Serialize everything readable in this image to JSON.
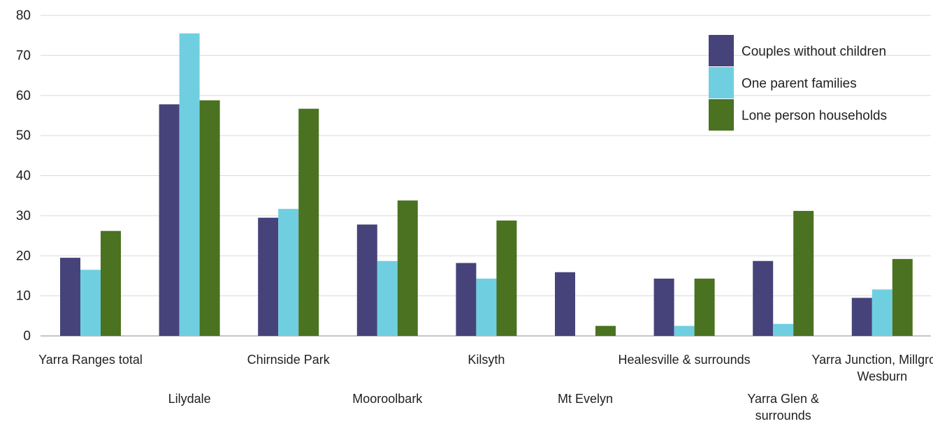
{
  "chart_data": {
    "type": "bar",
    "title": "",
    "xlabel": "",
    "ylabel": "",
    "ylim": [
      0,
      80
    ],
    "yticks": [
      0,
      10,
      20,
      30,
      40,
      50,
      60,
      70,
      80
    ],
    "grid": true,
    "legend_position": "top-right",
    "categories": [
      "Yarra Ranges total",
      "Lilydale",
      "Chirnside Park",
      "Mooroolbark",
      "Kilsyth",
      "Mt Evelyn",
      "Healesville & surrounds",
      "Yarra Glen & surrounds",
      "Yarra Junction, Millgrove, Wesburn"
    ],
    "series": [
      {
        "name": "Couples without children",
        "color": "#46437b",
        "values": [
          19.5,
          57.8,
          29.5,
          27.8,
          18.2,
          15.9,
          14.3,
          18.7,
          9.5
        ]
      },
      {
        "name": "One parent families",
        "color": "#6fcfe0",
        "values": [
          16.5,
          75.5,
          31.7,
          18.7,
          14.3,
          0,
          2.5,
          3.0,
          11.6
        ]
      },
      {
        "name": "Lone person households",
        "color": "#4a7220",
        "values": [
          26.2,
          58.8,
          56.7,
          33.8,
          28.8,
          2.5,
          14.3,
          31.2,
          19.2
        ]
      }
    ]
  }
}
